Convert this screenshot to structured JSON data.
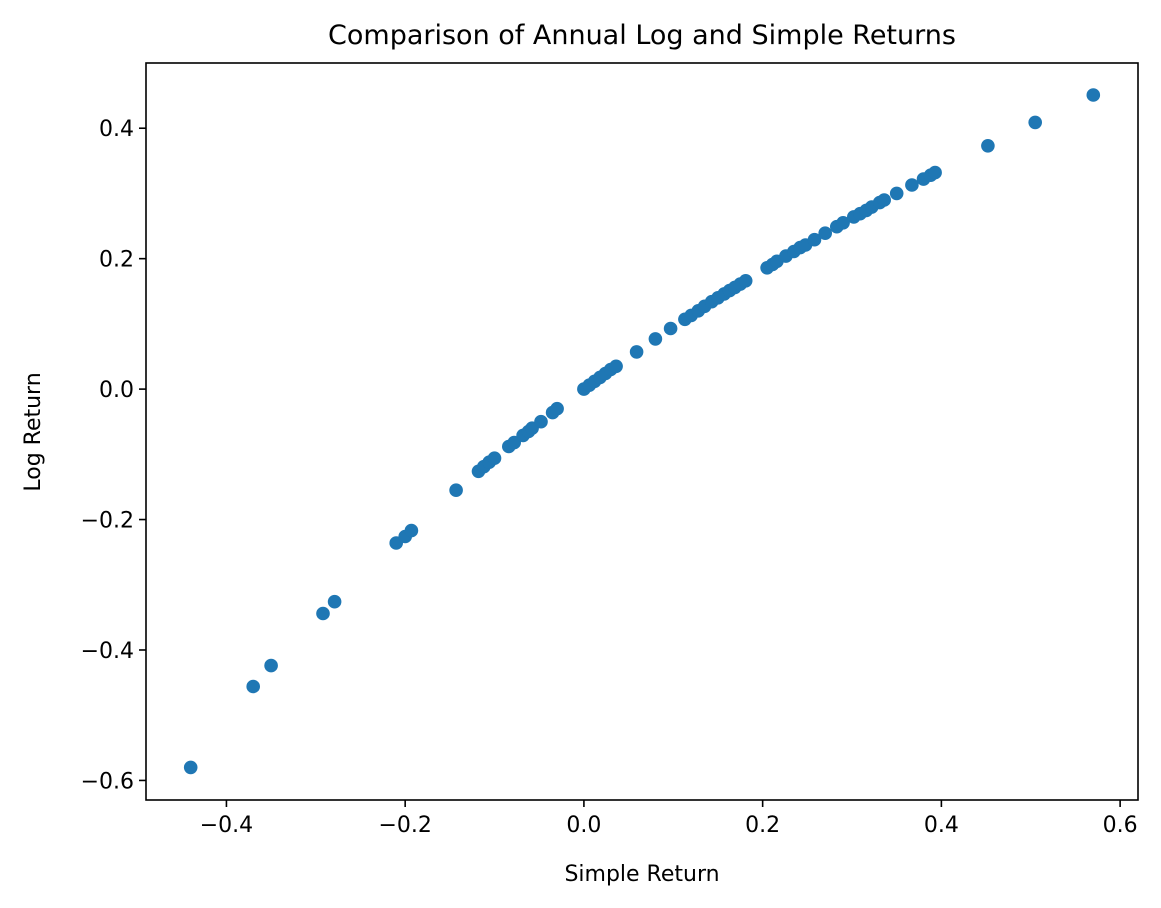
{
  "chart_data": {
    "type": "scatter",
    "title": "Comparison of Annual Log and Simple Returns",
    "xlabel": "Simple Return",
    "ylabel": "Log Return",
    "xlim": [
      -0.49,
      0.62
    ],
    "ylim": [
      -0.63,
      0.5
    ],
    "xticks": [
      -0.4,
      -0.2,
      0.0,
      0.2,
      0.4,
      0.6
    ],
    "xtick_labels": [
      "−0.4",
      "−0.2",
      "0.0",
      "0.2",
      "0.4",
      "0.6"
    ],
    "yticks": [
      -0.6,
      -0.4,
      -0.2,
      0.0,
      0.2,
      0.4
    ],
    "ytick_labels": [
      "−0.6",
      "−0.4",
      "−0.2",
      "0.0",
      "0.2",
      "0.4"
    ],
    "grid": false,
    "marker_color": "#1f77b4",
    "points": [
      [
        -0.44,
        -0.58
      ],
      [
        -0.37,
        -0.456
      ],
      [
        -0.35,
        -0.424
      ],
      [
        -0.292,
        -0.344
      ],
      [
        -0.279,
        -0.326
      ],
      [
        -0.21,
        -0.236
      ],
      [
        -0.2,
        -0.226
      ],
      [
        -0.193,
        -0.217
      ],
      [
        -0.143,
        -0.155
      ],
      [
        -0.118,
        -0.126
      ],
      [
        -0.112,
        -0.119
      ],
      [
        -0.106,
        -0.112
      ],
      [
        -0.1,
        -0.106
      ],
      [
        -0.084,
        -0.088
      ],
      [
        -0.078,
        -0.082
      ],
      [
        -0.068,
        -0.071
      ],
      [
        -0.062,
        -0.065
      ],
      [
        -0.058,
        -0.06
      ],
      [
        -0.048,
        -0.05
      ],
      [
        -0.035,
        -0.036
      ],
      [
        -0.03,
        -0.03
      ],
      [
        0.0,
        0.0
      ],
      [
        0.006,
        0.006
      ],
      [
        0.012,
        0.012
      ],
      [
        0.018,
        0.018
      ],
      [
        0.024,
        0.024
      ],
      [
        0.03,
        0.03
      ],
      [
        0.036,
        0.035
      ],
      [
        0.059,
        0.057
      ],
      [
        0.08,
        0.077
      ],
      [
        0.097,
        0.093
      ],
      [
        0.113,
        0.107
      ],
      [
        0.12,
        0.113
      ],
      [
        0.128,
        0.12
      ],
      [
        0.135,
        0.127
      ],
      [
        0.143,
        0.134
      ],
      [
        0.15,
        0.14
      ],
      [
        0.157,
        0.146
      ],
      [
        0.163,
        0.151
      ],
      [
        0.169,
        0.156
      ],
      [
        0.175,
        0.161
      ],
      [
        0.181,
        0.166
      ],
      [
        0.205,
        0.186
      ],
      [
        0.211,
        0.191
      ],
      [
        0.216,
        0.196
      ],
      [
        0.226,
        0.204
      ],
      [
        0.235,
        0.211
      ],
      [
        0.242,
        0.217
      ],
      [
        0.248,
        0.221
      ],
      [
        0.258,
        0.229
      ],
      [
        0.27,
        0.239
      ],
      [
        0.283,
        0.249
      ],
      [
        0.29,
        0.255
      ],
      [
        0.302,
        0.264
      ],
      [
        0.309,
        0.269
      ],
      [
        0.316,
        0.274
      ],
      [
        0.322,
        0.279
      ],
      [
        0.331,
        0.286
      ],
      [
        0.336,
        0.29
      ],
      [
        0.35,
        0.3
      ],
      [
        0.367,
        0.313
      ],
      [
        0.38,
        0.322
      ],
      [
        0.388,
        0.328
      ],
      [
        0.393,
        0.332
      ],
      [
        0.452,
        0.373
      ],
      [
        0.505,
        0.409
      ],
      [
        0.57,
        0.451
      ]
    ]
  }
}
